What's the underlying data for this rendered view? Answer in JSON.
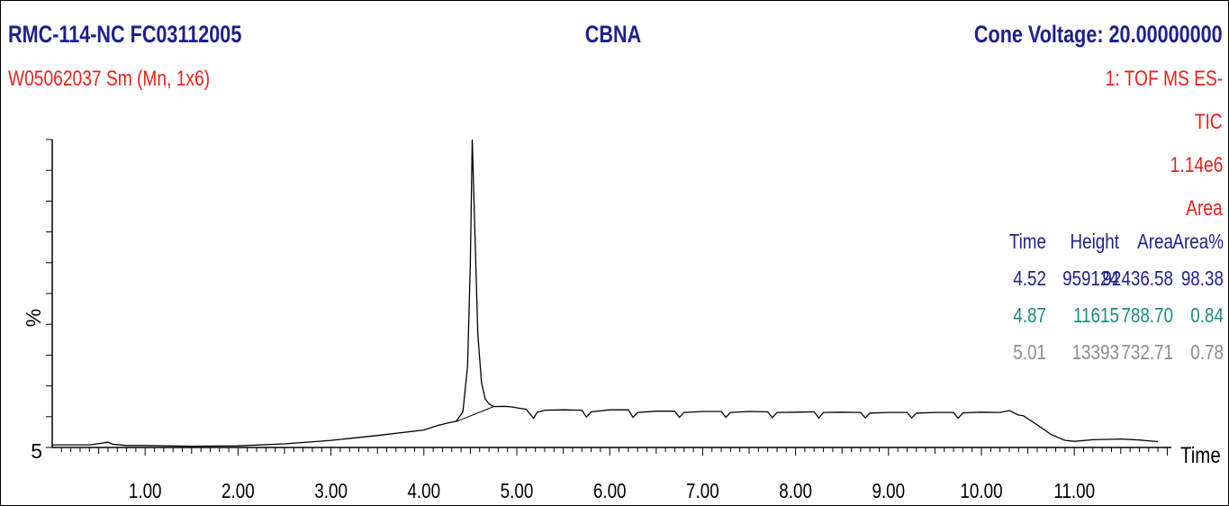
{
  "header": {
    "title_left": "RMC-114-NC FC03112005",
    "title_center": "CBNA",
    "title_right": "Cone Voltage: 20.00000000",
    "sample": "W05062037 Sm (Mn, 1x6)",
    "detector_lines": [
      "1: TOF MS ES-",
      "TIC",
      "1.14e6",
      "Area"
    ]
  },
  "colors": {
    "title": "#1f1f8c",
    "detector": "#e8221c",
    "row1": "#1f1f8c",
    "row2": "#1a8a7a",
    "row3": "#8c8c8c",
    "trace": "#000000"
  },
  "peak_table": {
    "headers": [
      "Time",
      "Height",
      "Area",
      "Area%"
    ],
    "rows": [
      [
        "4.52",
        "959124",
        "92436.58",
        "98.38"
      ],
      [
        "4.87",
        "11615",
        "788.70",
        "0.84"
      ],
      [
        "5.01",
        "13393",
        "732.71",
        "0.78"
      ]
    ]
  },
  "chart_data": {
    "type": "line",
    "title": "CBNA",
    "xlabel": "Time",
    "ylabel": "%",
    "xlim": [
      0,
      12
    ],
    "ylim": [
      5,
      100
    ],
    "x_ticks": [
      "1.00",
      "2.00",
      "3.00",
      "4.00",
      "5.00",
      "6.00",
      "7.00",
      "8.00",
      "9.00",
      "10.00",
      "11.00"
    ],
    "y_tick_labels": [
      "5"
    ],
    "x": [
      0.0,
      0.4,
      0.55,
      0.6,
      0.65,
      0.8,
      1.0,
      1.5,
      2.0,
      2.5,
      3.0,
      3.5,
      4.0,
      4.15,
      4.25,
      4.35,
      4.42,
      4.47,
      4.5,
      4.52,
      4.55,
      4.58,
      4.62,
      4.66,
      4.7,
      4.75,
      4.87,
      4.95,
      5.01,
      5.1,
      5.18,
      5.22,
      5.3,
      5.5,
      5.7,
      5.75,
      5.8,
      6.0,
      6.2,
      6.25,
      6.3,
      6.5,
      6.7,
      6.75,
      6.8,
      7.0,
      7.2,
      7.25,
      7.3,
      7.5,
      7.7,
      7.75,
      7.8,
      8.0,
      8.2,
      8.25,
      8.3,
      8.5,
      8.7,
      8.75,
      8.8,
      9.0,
      9.2,
      9.25,
      9.3,
      9.5,
      9.7,
      9.75,
      9.8,
      10.0,
      10.2,
      10.3,
      10.4,
      10.45,
      10.6,
      10.75,
      10.9,
      11.0,
      11.2,
      11.5,
      11.7,
      11.9
    ],
    "y": [
      5.8,
      5.8,
      6.4,
      6.6,
      6.0,
      5.6,
      5.6,
      5.4,
      5.5,
      6.1,
      7.2,
      8.7,
      10.4,
      11.8,
      12.5,
      13.1,
      16.0,
      30.0,
      62.0,
      100.0,
      70.0,
      40.0,
      25.0,
      20.0,
      18.5,
      17.6,
      17.7,
      17.5,
      17.2,
      16.8,
      14.0,
      15.9,
      16.5,
      16.6,
      16.5,
      14.4,
      16.0,
      16.6,
      16.6,
      14.3,
      15.8,
      16.2,
      16.2,
      14.3,
      15.8,
      16.1,
      16.1,
      14.3,
      15.8,
      16.1,
      16.0,
      14.2,
      15.8,
      15.9,
      16.0,
      14.1,
      15.8,
      15.9,
      15.8,
      14.1,
      15.6,
      15.8,
      15.8,
      14.1,
      15.6,
      15.8,
      15.8,
      14.0,
      15.7,
      15.9,
      15.8,
      16.4,
      15.0,
      14.8,
      12.0,
      9.0,
      7.2,
      6.9,
      7.4,
      7.6,
      7.3,
      6.8
    ],
    "baseline_segments": [
      {
        "x": [
          4.35,
          4.75
        ],
        "y": [
          13.0,
          17.6
        ]
      }
    ]
  }
}
